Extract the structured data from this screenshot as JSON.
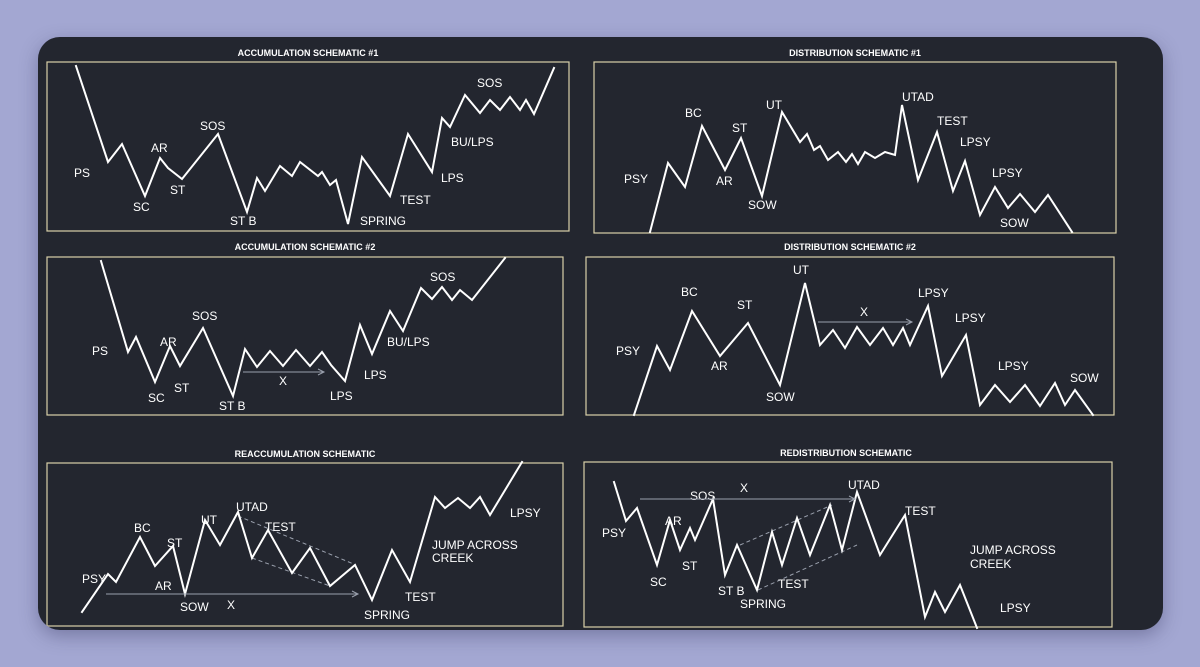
{
  "colors": {
    "page_bg": "#a3a7d2",
    "card_bg": "#23262f",
    "frame": "#d9cfa8",
    "line": "#ffffff",
    "guide": "#9aa0ad"
  },
  "panels": [
    {
      "id": "accumulation-1",
      "title": "ACCUMULATION SCHEMATIC #1",
      "labels": [
        {
          "text": "PS"
        },
        {
          "text": "SC"
        },
        {
          "text": "AR"
        },
        {
          "text": "ST"
        },
        {
          "text": "SOS"
        },
        {
          "text": "ST B"
        },
        {
          "text": "SPRING"
        },
        {
          "text": "TEST"
        },
        {
          "text": "LPS"
        },
        {
          "text": "BU/LPS"
        },
        {
          "text": "SOS"
        }
      ]
    },
    {
      "id": "distribution-1",
      "title": "DISTRIBUTION SCHEMATIC #1",
      "labels": [
        {
          "text": "PSY"
        },
        {
          "text": "BC"
        },
        {
          "text": "AR"
        },
        {
          "text": "ST"
        },
        {
          "text": "SOW"
        },
        {
          "text": "UT"
        },
        {
          "text": "UTAD"
        },
        {
          "text": "TEST"
        },
        {
          "text": "LPSY"
        },
        {
          "text": "LPSY"
        },
        {
          "text": "SOW"
        }
      ]
    },
    {
      "id": "accumulation-2",
      "title": "ACCUMULATION SCHEMATIC #2",
      "labels": [
        {
          "text": "PS"
        },
        {
          "text": "SC"
        },
        {
          "text": "AR"
        },
        {
          "text": "ST"
        },
        {
          "text": "SOS"
        },
        {
          "text": "ST B"
        },
        {
          "text": "X"
        },
        {
          "text": "LPS"
        },
        {
          "text": "LPS"
        },
        {
          "text": "BU/LPS"
        },
        {
          "text": "SOS"
        }
      ]
    },
    {
      "id": "distribution-2",
      "title": "DISTRIBUTION SCHEMATIC #2",
      "labels": [
        {
          "text": "PSY"
        },
        {
          "text": "BC"
        },
        {
          "text": "AR"
        },
        {
          "text": "ST"
        },
        {
          "text": "SOW"
        },
        {
          "text": "UT"
        },
        {
          "text": "X"
        },
        {
          "text": "LPSY"
        },
        {
          "text": "LPSY"
        },
        {
          "text": "LPSY"
        },
        {
          "text": "SOW"
        }
      ]
    },
    {
      "id": "reaccumulation",
      "title": "REACCUMULATION SCHEMATIC",
      "labels": [
        {
          "text": "PSY"
        },
        {
          "text": "BC"
        },
        {
          "text": "AR"
        },
        {
          "text": "ST"
        },
        {
          "text": "UT"
        },
        {
          "text": "UTAD"
        },
        {
          "text": "TEST"
        },
        {
          "text": "SOW"
        },
        {
          "text": "X"
        },
        {
          "text": "SPRING"
        },
        {
          "text": "TEST"
        },
        {
          "text": "JUMP ACROSS"
        },
        {
          "text": "CREEK"
        },
        {
          "text": "LPSY"
        }
      ]
    },
    {
      "id": "redistribution",
      "title": "REDISTRIBUTION SCHEMATIC",
      "labels": [
        {
          "text": "PSY"
        },
        {
          "text": "AR"
        },
        {
          "text": "SC"
        },
        {
          "text": "ST"
        },
        {
          "text": "SOS"
        },
        {
          "text": "X"
        },
        {
          "text": "ST B"
        },
        {
          "text": "SPRING"
        },
        {
          "text": "TEST"
        },
        {
          "text": "UTAD"
        },
        {
          "text": "TEST"
        },
        {
          "text": "JUMP ACROSS"
        },
        {
          "text": "CREEK"
        },
        {
          "text": "LPSY"
        }
      ]
    }
  ]
}
